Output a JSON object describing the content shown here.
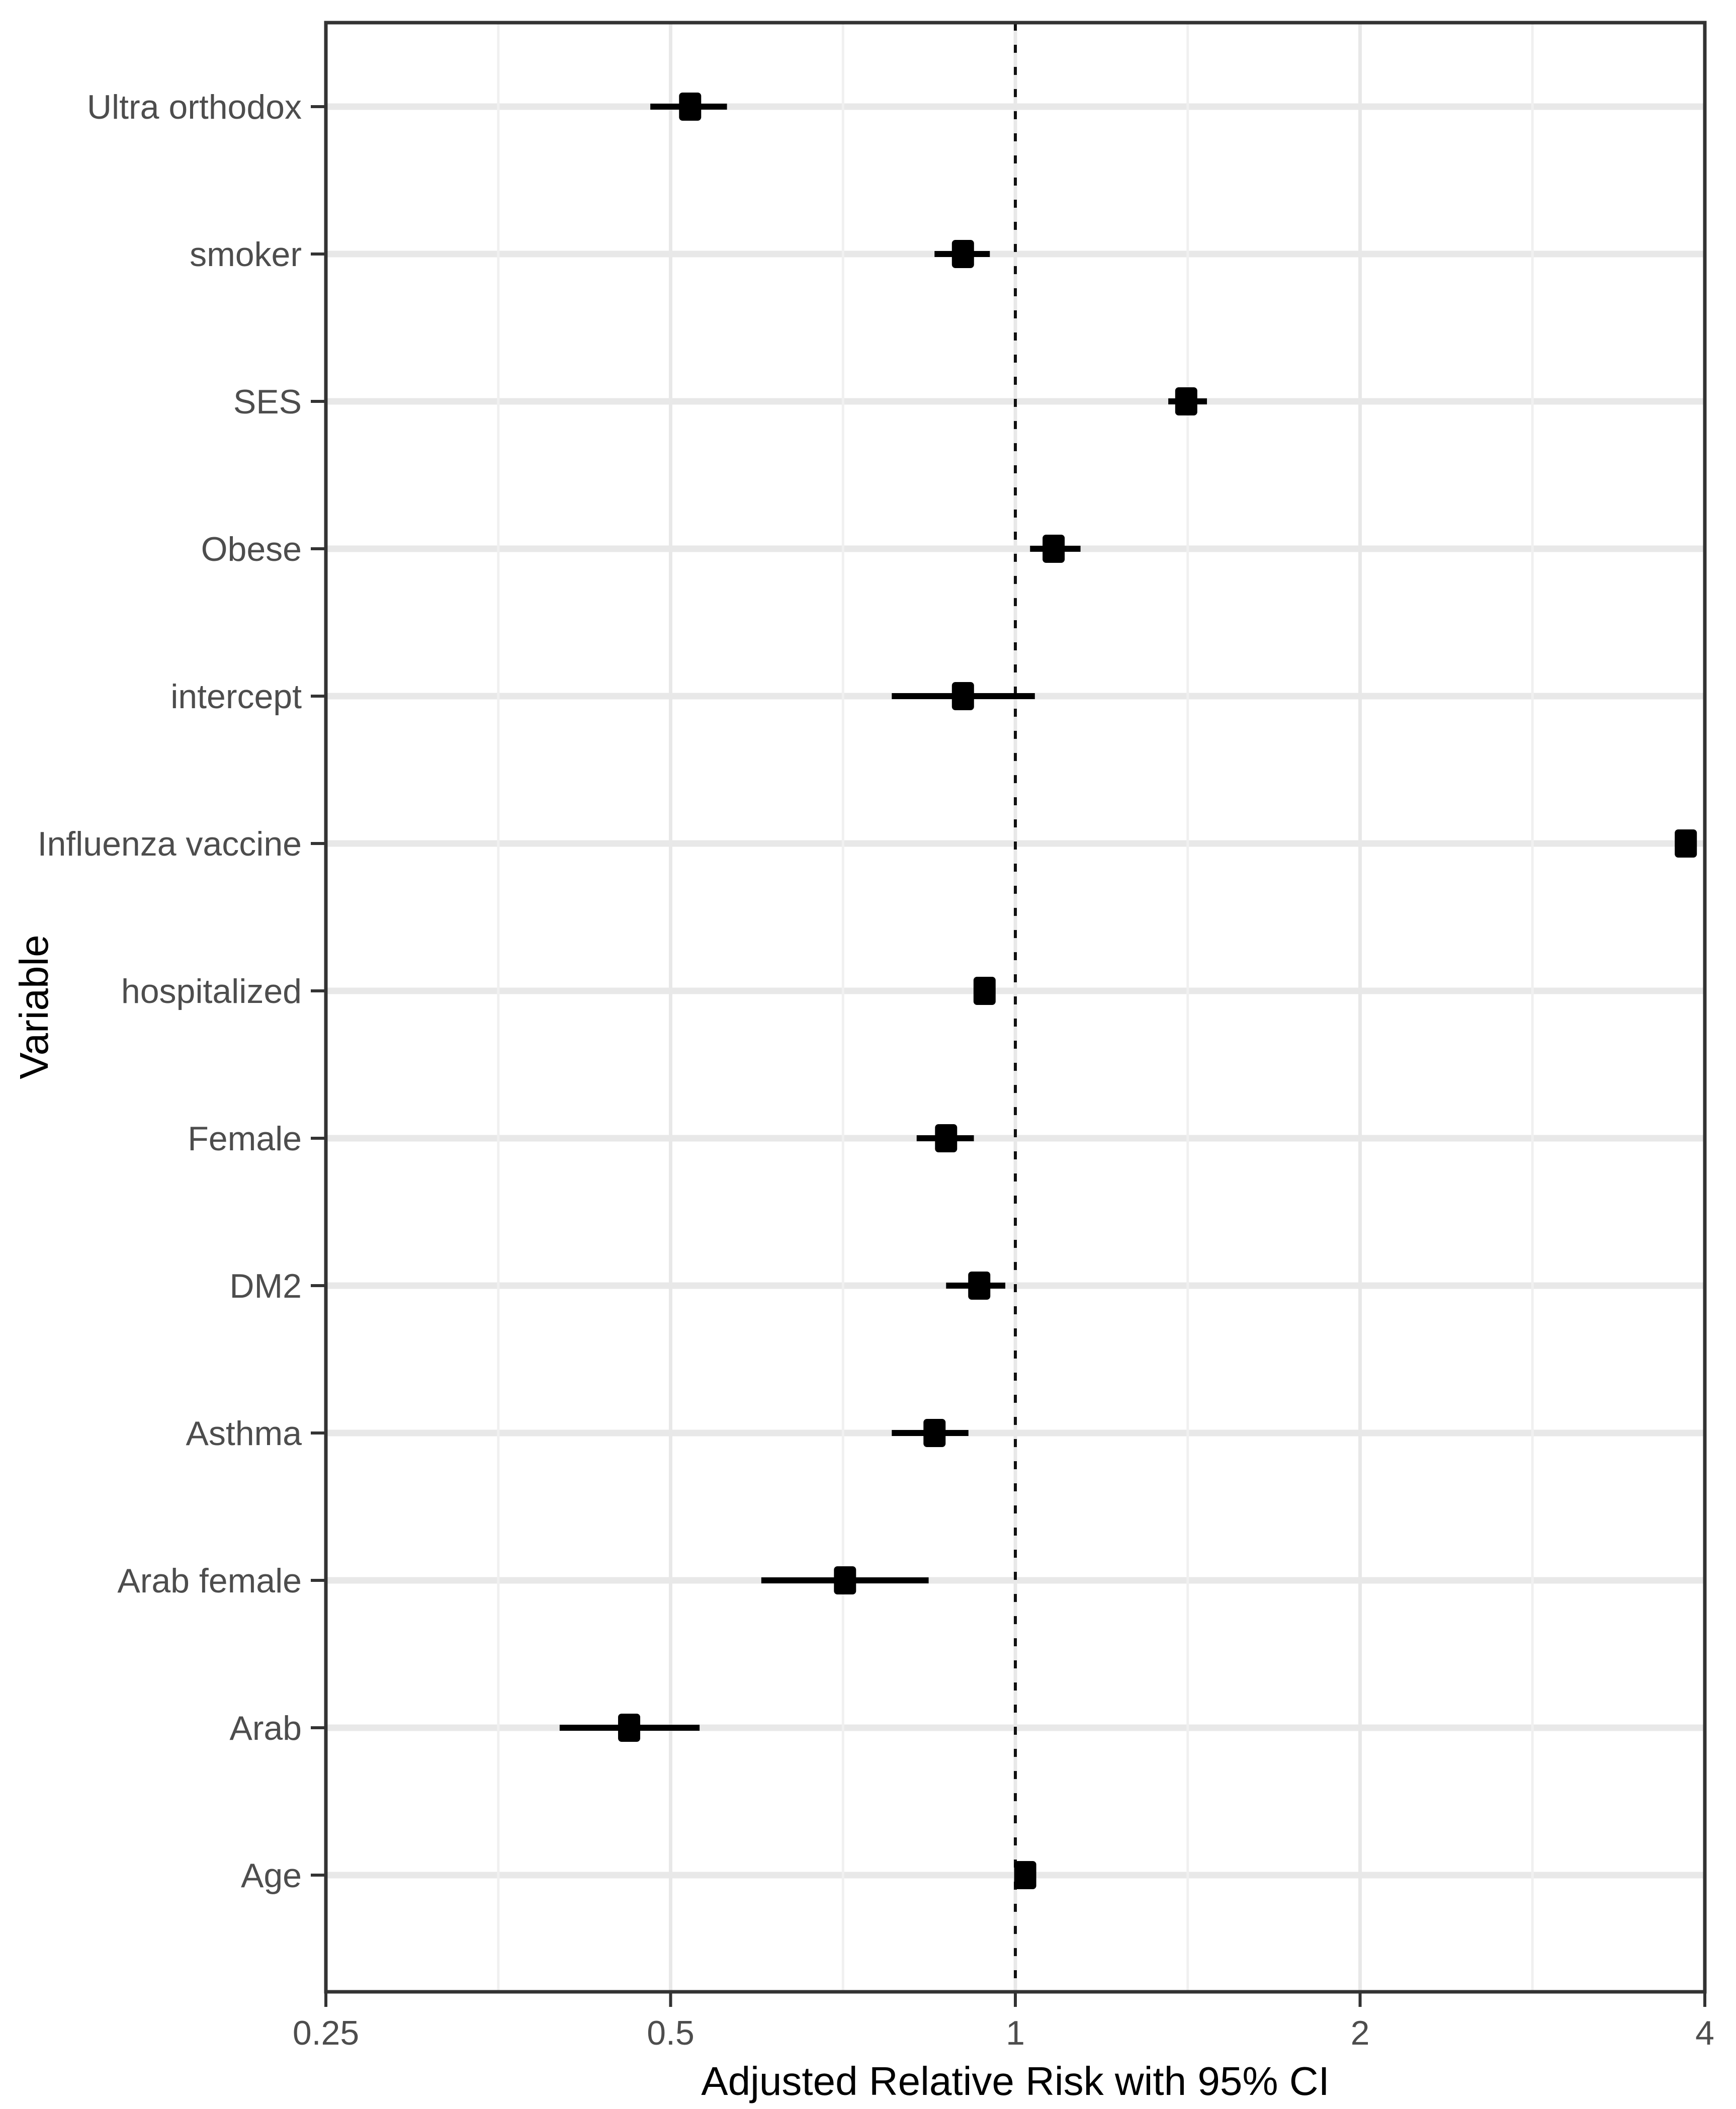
{
  "chart_data": {
    "type": "scatter",
    "subtype": "forest-plot-with-95ci",
    "title": "",
    "xlabel": "Adjusted Relative Risk with 95% CI",
    "ylabel": "Variable",
    "x_scale": "log2",
    "xlim": [
      0.25,
      4
    ],
    "x_ticks": [
      0.25,
      0.5,
      1,
      2,
      4
    ],
    "x_tick_labels": [
      "0.25",
      "0.5",
      "1",
      "2",
      "4"
    ],
    "x_minor_gridlines": [
      0.3536,
      0.7071,
      1.4142,
      2.8284
    ],
    "reference_line_x": 1,
    "grid": true,
    "legend": "none",
    "categories_top_to_bottom": [
      "Ultra orthodox",
      "smoker",
      "SES",
      "Obese",
      "intercept",
      "Influenza vaccine",
      "hospitalized",
      "Female",
      "DM2",
      "Asthma",
      "Arab female",
      "Arab",
      "Age"
    ],
    "points": [
      {
        "label": "Ultra orthodox",
        "estimate": 0.52,
        "ci_low": 0.48,
        "ci_high": 0.56
      },
      {
        "label": "smoker",
        "estimate": 0.9,
        "ci_low": 0.85,
        "ci_high": 0.95
      },
      {
        "label": "SES",
        "estimate": 1.41,
        "ci_low": 1.36,
        "ci_high": 1.47
      },
      {
        "label": "Obese",
        "estimate": 1.08,
        "ci_low": 1.03,
        "ci_high": 1.14
      },
      {
        "label": "intercept",
        "estimate": 0.9,
        "ci_low": 0.78,
        "ci_high": 1.04
      },
      {
        "label": "Influenza vaccine",
        "estimate": 3.85,
        "ci_low": 3.78,
        "ci_high": 3.93
      },
      {
        "label": "hospitalized",
        "estimate": 0.94,
        "ci_low": 0.92,
        "ci_high": 0.96
      },
      {
        "label": "Female",
        "estimate": 0.87,
        "ci_low": 0.82,
        "ci_high": 0.92
      },
      {
        "label": "DM2",
        "estimate": 0.93,
        "ci_low": 0.87,
        "ci_high": 0.98
      },
      {
        "label": "Asthma",
        "estimate": 0.85,
        "ci_low": 0.78,
        "ci_high": 0.91
      },
      {
        "label": "Arab female",
        "estimate": 0.71,
        "ci_low": 0.6,
        "ci_high": 0.84
      },
      {
        "label": "Arab",
        "estimate": 0.46,
        "ci_low": 0.4,
        "ci_high": 0.53
      },
      {
        "label": "Age",
        "estimate": 1.02,
        "ci_low": 1.0,
        "ci_high": 1.04
      }
    ],
    "style": {
      "background": "#ffffff",
      "marker_color": "#000000",
      "ci_color": "#000000",
      "reference_line_color": "#111111",
      "panel_border_color": "#333333",
      "major_grid_color": "#e8e8e8",
      "minor_grid_color": "#f0f0f0",
      "axis_text_color": "#4d4d4d",
      "axis_title_color": "#000000",
      "tick_mark_color": "#333333"
    }
  }
}
